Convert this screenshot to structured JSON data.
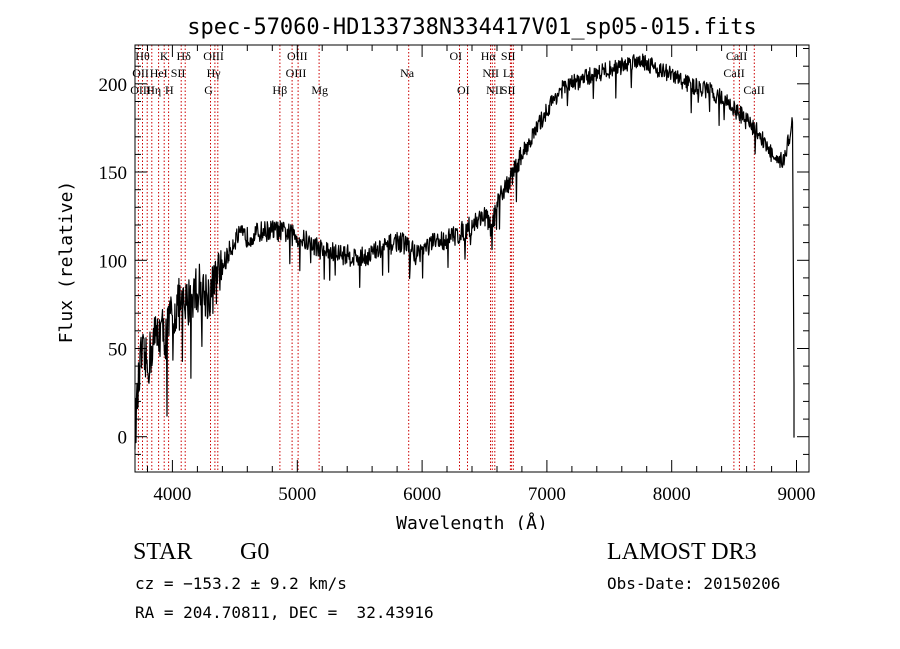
{
  "chart_data": {
    "type": "line",
    "title": "spec-57060-HD133738N334417V01_sp05-015.fits",
    "xlabel": "Wavelength (Å)",
    "ylabel": "Flux (relative)",
    "xlim": [
      3700,
      9100
    ],
    "ylim": [
      -20,
      222
    ],
    "xticks": [
      4000,
      5000,
      6000,
      7000,
      8000,
      9000
    ],
    "yticks": [
      0,
      50,
      100,
      150,
      200
    ],
    "series": [
      {
        "name": "flux",
        "x": [
          3700,
          3750,
          3800,
          3850,
          3900,
          3950,
          4000,
          4050,
          4100,
          4150,
          4200,
          4250,
          4300,
          4350,
          4400,
          4450,
          4500,
          4550,
          4600,
          4700,
          4800,
          4900,
          5000,
          5100,
          5200,
          5300,
          5400,
          5500,
          5600,
          5700,
          5800,
          5900,
          5950,
          6000,
          6100,
          6200,
          6300,
          6400,
          6500,
          6550,
          6600,
          6650,
          6700,
          6800,
          6900,
          7000,
          7100,
          7200,
          7300,
          7400,
          7500,
          7600,
          7700,
          7750,
          7800,
          7900,
          8000,
          8100,
          8200,
          8300,
          8400,
          8500,
          8600,
          8700,
          8800,
          8850,
          8900,
          8950,
          8970,
          8980
        ],
        "values": [
          5,
          45,
          40,
          55,
          60,
          58,
          70,
          75,
          72,
          80,
          85,
          82,
          80,
          88,
          96,
          104,
          112,
          114,
          113,
          116,
          117,
          116,
          113,
          110,
          106,
          104,
          103,
          101,
          104,
          107,
          111,
          108,
          103,
          106,
          110,
          112,
          115,
          120,
          126,
          118,
          130,
          140,
          145,
          160,
          172,
          185,
          196,
          200,
          203,
          206,
          208,
          210,
          213,
          214,
          212,
          208,
          205,
          201,
          198,
          196,
          192,
          186,
          179,
          172,
          160,
          154,
          158,
          172,
          180,
          30
        ]
      }
    ],
    "lines": [
      {
        "name": "CaII K",
        "label": "K",
        "wavelength": 3934
      },
      {
        "name": "CaII H",
        "label": "H",
        "wavelength": 3969
      },
      {
        "name": "H theta",
        "label": "Hθ",
        "wavelength": 3798
      },
      {
        "name": "H eta",
        "label": "Hη",
        "wavelength": 3835
      },
      {
        "name": "OII",
        "label": "OII",
        "wavelength": 3727
      },
      {
        "name": "OIII",
        "label": "OIII",
        "wavelength": 3760
      },
      {
        "name": "HeI",
        "label": "HeI",
        "wavelength": 3889
      },
      {
        "name": "SII",
        "label": "SII",
        "wavelength": 4070
      },
      {
        "name": "H delta",
        "label": "Hδ",
        "wavelength": 4102
      },
      {
        "name": "H gamma",
        "label": "Hγ",
        "wavelength": 4340
      },
      {
        "name": "G band",
        "label": "G",
        "wavelength": 4305
      },
      {
        "name": "OIII 4363",
        "label": "OIII",
        "wavelength": 4363
      },
      {
        "name": "H beta",
        "label": "Hβ",
        "wavelength": 4861
      },
      {
        "name": "OIII 4959",
        "label": "OIII",
        "wavelength": 4959
      },
      {
        "name": "OIII 5007",
        "label": "OIII",
        "wavelength": 5007
      },
      {
        "name": "Mg",
        "label": "Mg",
        "wavelength": 5175
      },
      {
        "name": "Na",
        "label": "Na",
        "wavelength": 5893
      },
      {
        "name": "OI 6300",
        "label": "OI",
        "wavelength": 6300
      },
      {
        "name": "OI 6364",
        "label": "OI",
        "wavelength": 6364
      },
      {
        "name": "NII 6548",
        "label": "NII",
        "wavelength": 6548
      },
      {
        "name": "H alpha",
        "label": "Hα",
        "wavelength": 6563
      },
      {
        "name": "NII 6583",
        "label": "NII",
        "wavelength": 6583
      },
      {
        "name": "Li",
        "label": "Li",
        "wavelength": 6708
      },
      {
        "name": "SII 6716",
        "label": "SII",
        "wavelength": 6716
      },
      {
        "name": "SII 6731",
        "label": "SII",
        "wavelength": 6731
      },
      {
        "name": "CaII 8498",
        "label": "CaII",
        "wavelength": 8498
      },
      {
        "name": "CaII 8542",
        "label": "CaII",
        "wavelength": 8542
      },
      {
        "name": "CaII 8662",
        "label": "CaII",
        "wavelength": 8662
      }
    ],
    "line_label_rows": [
      [
        [
          "Hθ",
          3760
        ],
        [
          "K",
          3934
        ],
        [
          "Hδ",
          4090
        ],
        [
          "OIII",
          4330
        ],
        [
          "OIII",
          5000
        ],
        [
          "OI",
          6270
        ],
        [
          "Hα",
          6530
        ],
        [
          "SII",
          6690
        ],
        [
          "CaII",
          8520
        ]
      ],
      [
        [
          "OII",
          3745
        ],
        [
          "HeI",
          3890
        ],
        [
          "SII",
          4045
        ],
        [
          "Hγ",
          4330
        ],
        [
          "OIII",
          4990
        ],
        [
          "Na",
          5880
        ],
        [
          "NII",
          6550
        ],
        [
          "Li",
          6690
        ],
        [
          "CaII",
          8500
        ]
      ],
      [
        [
          "OIII",
          3745
        ],
        [
          "Hη",
          3850
        ],
        [
          "H",
          3975
        ],
        [
          "G",
          4290
        ],
        [
          "Hβ",
          4860
        ],
        [
          "Mg",
          5180
        ],
        [
          "OI",
          6330
        ],
        [
          "NII",
          6580
        ],
        [
          "SII",
          6690
        ],
        [
          "CaII",
          8660
        ]
      ]
    ]
  },
  "info": {
    "object_class": "STAR",
    "subclass": "G0",
    "survey": "LAMOST DR3",
    "redshift": "cz = −153.2 ± 9.2 km/s",
    "obs_date": "Obs-Date: 20150206",
    "coords": "RA = 204.70811, DEC =  32.43916"
  }
}
